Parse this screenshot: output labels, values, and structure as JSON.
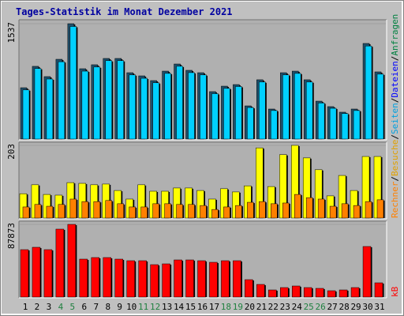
{
  "chart_data": {
    "type": "bar",
    "title": "Tages-Statistik im Monat Dezember 2021",
    "categories": [
      "1",
      "2",
      "3",
      "4",
      "5",
      "6",
      "7",
      "8",
      "9",
      "10",
      "11",
      "12",
      "13",
      "14",
      "15",
      "16",
      "17",
      "18",
      "19",
      "20",
      "21",
      "22",
      "23",
      "24",
      "25",
      "26",
      "27",
      "28",
      "29",
      "30",
      "31"
    ],
    "category_colors": [
      "#000000",
      "#000000",
      "#000000",
      "#208040",
      "#208040",
      "#000000",
      "#000000",
      "#000000",
      "#000000",
      "#000000",
      "#208040",
      "#208040",
      "#000000",
      "#000000",
      "#000000",
      "#000000",
      "#000000",
      "#208040",
      "#208040",
      "#000000",
      "#000000",
      "#000000",
      "#000000",
      "#000000",
      "#208040",
      "#208040",
      "#000000",
      "#000000",
      "#000000",
      "#000000",
      "#000000"
    ],
    "panels": [
      {
        "ylim": [
          0,
          1537
        ],
        "yticks": [
          1537
        ],
        "series": [
          {
            "color": "#1f4f6a",
            "values": [
              684,
              969,
              832,
              1063,
              1537,
              937,
              990,
              1074,
              1074,
              884,
              842,
              779,
              905,
              1000,
              916,
              884,
              632,
              705,
              726,
              442,
              790,
              400,
              884,
              905,
              790,
              505,
              432,
              358,
              400,
              1274,
              895
            ]
          },
          {
            "color": "#00d0ff",
            "values": [
              655,
              940,
              800,
              1030,
              1500,
              905,
              960,
              1045,
              1045,
              855,
              810,
              750,
              875,
              970,
              885,
              855,
              605,
              675,
              700,
              420,
              760,
              380,
              855,
              875,
              760,
              480,
              410,
              340,
              380,
              1240,
              865
            ]
          }
        ]
      },
      {
        "ylim": [
          0,
          203
        ],
        "yticks": [
          203
        ],
        "series": [
          {
            "color": "#ffff00",
            "values": [
              68,
              93,
              66,
              64,
              99,
              97,
              93,
              95,
              77,
              53,
              93,
              75,
              75,
              84,
              84,
              77,
              53,
              82,
              73,
              90,
              196,
              88,
              177,
              203,
              168,
              135,
              62,
              119,
              77,
              172,
              172
            ]
          },
          {
            "color": "#ff8000",
            "values": [
              31,
              38,
              33,
              38,
              53,
              46,
              46,
              49,
              40,
              31,
              31,
              40,
              40,
              38,
              38,
              35,
              24,
              31,
              35,
              44,
              46,
              40,
              42,
              66,
              57,
              53,
              33,
              40,
              35,
              46,
              51
            ]
          }
        ]
      },
      {
        "ylim": [
          0,
          87873
        ],
        "yticks": [
          87873
        ],
        "series": [
          {
            "color": "#ff0000",
            "values": [
              57309,
              60174,
              57309,
              82143,
              87873,
              45847,
              47757,
              47757,
              45847,
              43937,
              43937,
              39161,
              40117,
              44892,
              44892,
              43937,
              42027,
              43937,
              43937,
              21014,
              15283,
              8597,
              11462,
              13372,
              11462,
              10506,
              7641,
              8597,
              11462,
              61129,
              17193
            ]
          }
        ]
      }
    ],
    "legend": [
      {
        "text": "Rechner",
        "color": "#ff8000"
      },
      {
        "text": "Besuche",
        "color": "#e0a000"
      },
      {
        "text": "Seiten",
        "color": "#00a0e0"
      },
      {
        "text": "Dateien",
        "color": "#0000ff"
      },
      {
        "text": "Anfragen",
        "color": "#008040"
      }
    ],
    "legend_separator": "/",
    "unit_label": {
      "text": "kB",
      "color": "#ff0000"
    }
  }
}
